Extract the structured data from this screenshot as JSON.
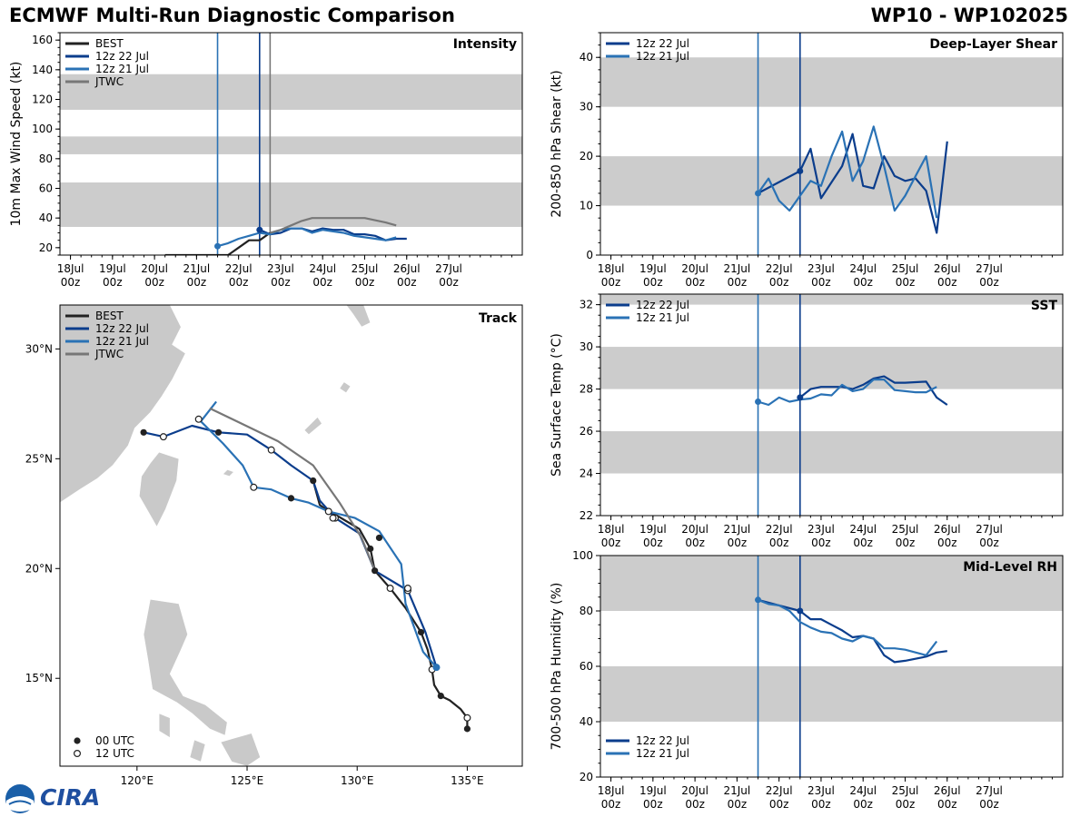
{
  "header": {
    "title_left": "ECMWF Multi-Run Diagnostic Comparison",
    "title_right": "WP10 - WP102025"
  },
  "logo": {
    "text": "CIRA",
    "icon_name": "noaa-cira-logo-icon"
  },
  "colors": {
    "best": "#222222",
    "run_22": "#0b3d8c",
    "run_21": "#2a72b5",
    "jtwc": "#777777",
    "band": "#cccccc",
    "land": "#c9c9c9"
  },
  "time_axis": {
    "ticks": [
      {
        "day": 18,
        "top": "18Jul",
        "bottom": "00z"
      },
      {
        "day": 19,
        "top": "19Jul",
        "bottom": "00z"
      },
      {
        "day": 20,
        "top": "20Jul",
        "bottom": "00z"
      },
      {
        "day": 21,
        "top": "21Jul",
        "bottom": "00z"
      },
      {
        "day": 22,
        "top": "22Jul",
        "bottom": "00z"
      },
      {
        "day": 23,
        "top": "23Jul",
        "bottom": "00z"
      },
      {
        "day": 24,
        "top": "24Jul",
        "bottom": "00z"
      },
      {
        "day": 25,
        "top": "25Jul",
        "bottom": "00z"
      },
      {
        "day": 26,
        "top": "26Jul",
        "bottom": "00z"
      },
      {
        "day": 27,
        "top": "27Jul",
        "bottom": "00z"
      }
    ],
    "range": [
      17.75,
      28.75
    ]
  },
  "chart_data": [
    {
      "id": "intensity",
      "type": "line",
      "title": "Intensity",
      "ylabel": "10m Max Wind Speed (kt)",
      "ylim": [
        15,
        165
      ],
      "yticks": [
        20,
        40,
        60,
        80,
        100,
        120,
        140,
        160
      ],
      "bands": [
        [
          34,
          64
        ],
        [
          83,
          95
        ],
        [
          113,
          137
        ]
      ],
      "init_lines": [
        {
          "day": 21.5,
          "series": "12z 21 Jul"
        },
        {
          "day": 22.5,
          "series": "12z 22 Jul"
        },
        {
          "day": 22.75,
          "series": "JTWC"
        }
      ],
      "legend": [
        "BEST",
        "12z 22 Jul",
        "12z 21 Jul",
        "JTWC"
      ],
      "series": [
        {
          "name": "BEST",
          "x": [
            20.25,
            20.5,
            20.75,
            21.0,
            21.25,
            21.5,
            21.75,
            22.0,
            22.25,
            22.5,
            22.75
          ],
          "y": [
            15,
            15,
            15,
            15,
            15,
            15,
            15,
            20,
            25,
            25,
            30
          ]
        },
        {
          "name": "12z 22 Jul",
          "x": [
            22.5,
            22.75,
            23.0,
            23.25,
            23.5,
            23.75,
            24.0,
            24.25,
            24.5,
            24.75,
            25.0,
            25.25,
            25.5,
            25.75,
            26.0
          ],
          "y": [
            32,
            29,
            30,
            33,
            33,
            31,
            33,
            32,
            32,
            29,
            29,
            28,
            25,
            26,
            26
          ]
        },
        {
          "name": "12z 21 Jul",
          "x": [
            21.5,
            21.75,
            22.0,
            22.25,
            22.5,
            22.75,
            23.0,
            23.25,
            23.5,
            23.75,
            24.0,
            24.25,
            24.5,
            24.75,
            25.0,
            25.25,
            25.5,
            25.75
          ],
          "y": [
            21,
            23,
            26,
            28,
            30,
            29,
            32,
            33,
            33,
            30,
            32,
            31,
            30,
            28,
            27,
            26,
            25,
            27
          ]
        },
        {
          "name": "JTWC",
          "x": [
            22.75,
            23.0,
            23.25,
            23.5,
            23.75,
            24.0,
            24.5,
            25.0,
            25.5,
            25.75
          ],
          "y": [
            30,
            32,
            35,
            38,
            40,
            40,
            40,
            40,
            37,
            35
          ]
        }
      ]
    },
    {
      "id": "shear",
      "type": "line",
      "title": "Deep-Layer Shear",
      "ylabel": "200-850 hPa Shear (kt)",
      "ylim": [
        0,
        45
      ],
      "yticks": [
        0,
        10,
        20,
        30,
        40
      ],
      "bands": [
        [
          10,
          20
        ],
        [
          30,
          40
        ]
      ],
      "init_lines": [
        {
          "day": 21.5
        },
        {
          "day": 22.5
        }
      ],
      "legend": [
        "12z 22 Jul",
        "12z 21 Jul"
      ],
      "series": [
        {
          "name": "12z 22 Jul",
          "x": [
            21.5,
            22.5,
            22.75,
            23.0,
            23.5,
            23.75,
            24.0,
            24.25,
            24.5,
            24.75,
            25.0,
            25.25,
            25.5,
            25.75,
            26.0
          ],
          "y": [
            12.5,
            17,
            21.5,
            11.5,
            18,
            24.5,
            14,
            13.5,
            20,
            16,
            15,
            15.5,
            13,
            4.5,
            23
          ]
        },
        {
          "name": "12z 21 Jul",
          "x": [
            21.5,
            21.75,
            22.0,
            22.25,
            22.75,
            23.0,
            23.25,
            23.5,
            23.75,
            24.0,
            24.25,
            24.5,
            24.75,
            25.0,
            25.25,
            25.5,
            25.75
          ],
          "y": [
            12.5,
            15.5,
            11,
            9,
            15,
            14,
            20,
            25,
            15,
            19,
            26,
            18,
            9,
            12,
            16,
            20,
            7.5
          ]
        }
      ]
    },
    {
      "id": "sst",
      "type": "line",
      "title": "SST",
      "ylabel": "Sea Surface Temp (°C)",
      "ylim": [
        22,
        32.5
      ],
      "yticks": [
        22,
        24,
        26,
        28,
        30,
        32
      ],
      "bands": [
        [
          24,
          26
        ],
        [
          28,
          30
        ],
        [
          32,
          34
        ]
      ],
      "init_lines": [
        {
          "day": 21.5
        },
        {
          "day": 22.5
        }
      ],
      "legend": [
        "12z 22 Jul",
        "12z 21 Jul"
      ],
      "series": [
        {
          "name": "12z 22 Jul",
          "x": [
            22.5,
            22.75,
            23.0,
            23.5,
            23.75,
            24.0,
            24.25,
            24.5,
            24.75,
            25.0,
            25.5,
            25.75,
            26.0
          ],
          "y": [
            27.6,
            28.0,
            28.1,
            28.1,
            28.0,
            28.2,
            28.5,
            28.6,
            28.3,
            28.3,
            28.35,
            27.6,
            27.25
          ]
        },
        {
          "name": "12z 21 Jul",
          "x": [
            21.5,
            21.75,
            22.0,
            22.25,
            22.5,
            22.75,
            23.0,
            23.25,
            23.5,
            23.75,
            24.0,
            24.25,
            24.5,
            24.75,
            25.0,
            25.25,
            25.5,
            25.75
          ],
          "y": [
            27.4,
            27.25,
            27.6,
            27.4,
            27.5,
            27.55,
            27.75,
            27.7,
            28.2,
            27.9,
            28.0,
            28.45,
            28.45,
            27.95,
            27.9,
            27.85,
            27.85,
            28.1
          ]
        }
      ]
    },
    {
      "id": "rh",
      "type": "line",
      "title": "Mid-Level RH",
      "ylabel": "700-500 hPa Humidity (%)",
      "ylim": [
        20,
        100
      ],
      "yticks": [
        20,
        40,
        60,
        80,
        100
      ],
      "bands": [
        [
          40,
          60
        ],
        [
          80,
          100
        ]
      ],
      "init_lines": [
        {
          "day": 21.5
        },
        {
          "day": 22.5
        }
      ],
      "legend": [
        "12z 22 Jul",
        "12z 21 Jul"
      ],
      "series": [
        {
          "name": "12z 22 Jul",
          "x": [
            21.5,
            22.0,
            22.5,
            22.75,
            23.0,
            23.25,
            23.5,
            23.75,
            24.0,
            24.25,
            24.5,
            24.75,
            25.0,
            25.5,
            25.75,
            26.0
          ],
          "y": [
            84,
            82,
            80,
            77,
            77,
            75,
            73,
            70.5,
            71,
            70,
            64,
            61.5,
            62,
            63.5,
            65,
            65.5
          ]
        },
        {
          "name": "12z 21 Jul",
          "x": [
            21.5,
            21.75,
            22.0,
            22.25,
            22.5,
            22.75,
            23.0,
            23.25,
            23.5,
            23.75,
            24.0,
            24.25,
            24.5,
            24.75,
            25.0,
            25.5,
            25.75
          ],
          "y": [
            84,
            82.5,
            82,
            80,
            76,
            74,
            72.5,
            72,
            70,
            69,
            71,
            70,
            66.5,
            66.5,
            66,
            64,
            69
          ]
        }
      ]
    },
    {
      "id": "track",
      "type": "scatter",
      "title": "Track",
      "xlim": [
        116.5,
        137.5
      ],
      "ylim": [
        11,
        32
      ],
      "xticks": [
        {
          "v": 120,
          "label": "120°E"
        },
        {
          "v": 125,
          "label": "125°E"
        },
        {
          "v": 130,
          "label": "130°E"
        },
        {
          "v": 135,
          "label": "135°E"
        }
      ],
      "yticks": [
        {
          "v": 15,
          "label": "15°N"
        },
        {
          "v": 20,
          "label": "20°N"
        },
        {
          "v": 25,
          "label": "25°N"
        },
        {
          "v": 30,
          "label": "30°N"
        }
      ],
      "legend": [
        "BEST",
        "12z 22 Jul",
        "12z 21 Jul",
        "JTWC"
      ],
      "marker_legend": [
        "00 UTC",
        "12 UTC"
      ],
      "series": [
        {
          "name": "BEST",
          "points": [
            [
              135.0,
              12.7
            ],
            [
              135.0,
              13.2
            ],
            [
              134.7,
              13.6
            ],
            [
              134.2,
              14.0
            ],
            [
              133.8,
              14.2
            ],
            [
              133.5,
              14.7
            ],
            [
              133.4,
              15.4
            ],
            [
              133.2,
              16.3
            ],
            [
              132.9,
              17.1
            ],
            [
              132.2,
              18.2
            ],
            [
              131.5,
              19.1
            ],
            [
              130.8,
              19.9
            ],
            [
              130.6,
              20.9
            ],
            [
              130.1,
              21.8
            ],
            [
              129.1,
              22.4
            ],
            [
              128.7,
              22.6
            ],
            [
              128.3,
              22.9
            ],
            [
              128.0,
              24.0
            ]
          ],
          "markers00": [
            [
              135.0,
              12.7
            ],
            [
              133.8,
              14.2
            ],
            [
              132.9,
              17.1
            ],
            [
              130.8,
              19.9
            ],
            [
              130.6,
              20.9
            ],
            [
              128.0,
              24.0
            ]
          ],
          "markers12": [
            [
              135.0,
              13.2
            ],
            [
              133.4,
              15.4
            ],
            [
              131.5,
              19.1
            ],
            [
              128.7,
              22.6
            ]
          ]
        },
        {
          "name": "12z 22 Jul",
          "points": [
            [
              133.6,
              15.5
            ],
            [
              133.1,
              17.1
            ],
            [
              132.3,
              19.0
            ],
            [
              130.8,
              19.9
            ],
            [
              130.1,
              21.6
            ],
            [
              129.0,
              22.3
            ],
            [
              128.3,
              23.1
            ],
            [
              128.0,
              24.0
            ],
            [
              127.0,
              24.7
            ],
            [
              126.1,
              25.4
            ],
            [
              125.0,
              26.1
            ],
            [
              123.7,
              26.2
            ],
            [
              122.5,
              26.5
            ],
            [
              121.2,
              26.0
            ],
            [
              120.3,
              26.2
            ]
          ],
          "markers00": [
            [
              131.0,
              21.4
            ],
            [
              123.7,
              26.2
            ],
            [
              120.3,
              26.2
            ]
          ],
          "markers12": [
            [
              132.3,
              19.0
            ],
            [
              129.0,
              22.3
            ],
            [
              126.1,
              25.4
            ],
            [
              121.2,
              26.0
            ]
          ]
        },
        {
          "name": "12z 21 Jul",
          "points": [
            [
              133.6,
              15.5
            ],
            [
              133.0,
              16.2
            ],
            [
              132.2,
              18.4
            ],
            [
              132.0,
              20.2
            ],
            [
              131.0,
              21.7
            ],
            [
              129.9,
              22.3
            ],
            [
              128.7,
              22.6
            ],
            [
              127.8,
              23.0
            ],
            [
              127.0,
              23.2
            ],
            [
              126.1,
              23.6
            ],
            [
              125.3,
              23.7
            ],
            [
              124.8,
              24.7
            ],
            [
              123.9,
              25.7
            ],
            [
              122.9,
              26.7
            ],
            [
              123.6,
              27.6
            ]
          ],
          "markers00": [
            [
              127.0,
              23.2
            ]
          ],
          "markers12": [
            [
              132.3,
              19.1
            ],
            [
              128.9,
              22.3
            ],
            [
              125.3,
              23.7
            ],
            [
              122.8,
              26.8
            ]
          ]
        },
        {
          "name": "JTWC",
          "points": [
            [
              130.8,
              19.9
            ],
            [
              130.2,
              21.4
            ],
            [
              129.2,
              23.0
            ],
            [
              128.0,
              24.7
            ],
            [
              126.4,
              25.8
            ],
            [
              123.3,
              27.3
            ]
          ]
        }
      ]
    }
  ]
}
